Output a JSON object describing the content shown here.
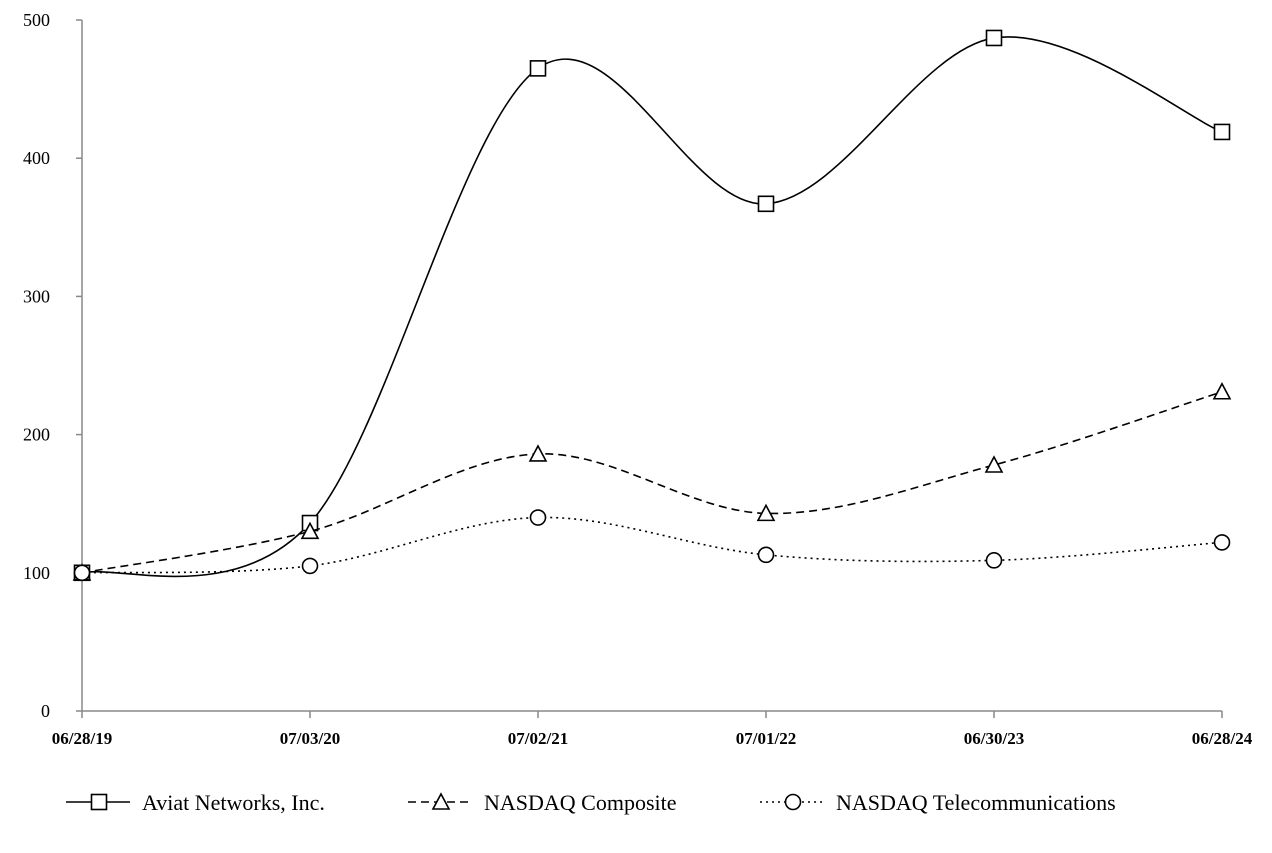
{
  "chart_data": {
    "type": "line",
    "title": "",
    "xlabel": "",
    "ylabel": "",
    "categories": [
      "06/28/19",
      "07/03/20",
      "07/02/21",
      "07/01/22",
      "06/30/23",
      "06/28/24"
    ],
    "ylim": [
      0,
      500
    ],
    "yticks": [
      0,
      100,
      200,
      300,
      400,
      500
    ],
    "grid": false,
    "legend_position": "bottom",
    "series": [
      {
        "name": "Aviat Networks, Inc.",
        "values": [
          100,
          136,
          465,
          367,
          487,
          419
        ],
        "line_style": "solid",
        "marker": "square",
        "color": "#000000"
      },
      {
        "name": "NASDAQ Composite",
        "values": [
          100,
          130,
          186,
          143,
          178,
          231
        ],
        "line_style": "dashed",
        "marker": "triangle",
        "color": "#000000"
      },
      {
        "name": "NASDAQ Telecommunications",
        "values": [
          100,
          105,
          140,
          113,
          109,
          122
        ],
        "line_style": "dotted",
        "marker": "circle",
        "color": "#000000"
      }
    ]
  }
}
